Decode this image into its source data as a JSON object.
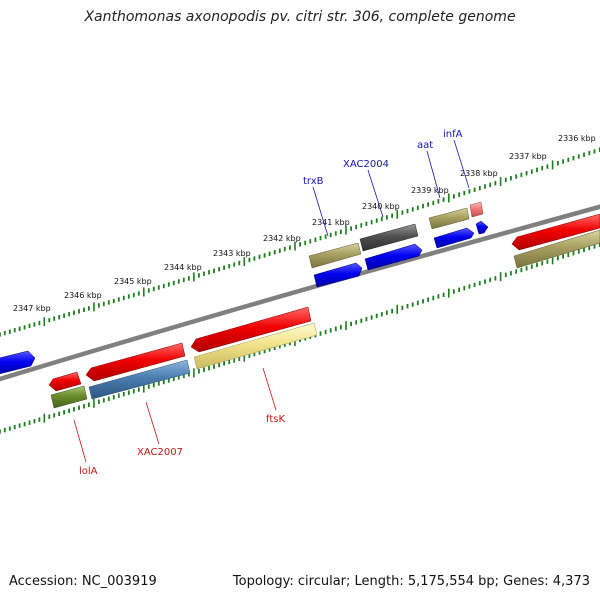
{
  "title": "Xanthomonas axonopodis pv. citri str. 306, complete genome",
  "footer": {
    "accession": "Accession: NC_003919",
    "stats": "Topology: circular; Length: 5,175,554 bp; Genes: 4,373"
  },
  "colors": {
    "backbone": "#808080",
    "tick": "#1e7d1e",
    "label_top": "#1414b4",
    "label_bottom": "#c81414"
  },
  "kbp_labels": [
    "2336 kbp",
    "2337 kbp",
    "2338 kbp",
    "2339 kbp",
    "2340 kbp",
    "2341 kbp",
    "2342 kbp",
    "2343 kbp",
    "2344 kbp",
    "2345 kbp",
    "2346 kbp",
    "2347 kbp"
  ],
  "gene_labels": [
    "infA",
    "aat",
    "XAC2004",
    "trxB",
    "ftsK",
    "XAC2007",
    "lolA"
  ]
}
